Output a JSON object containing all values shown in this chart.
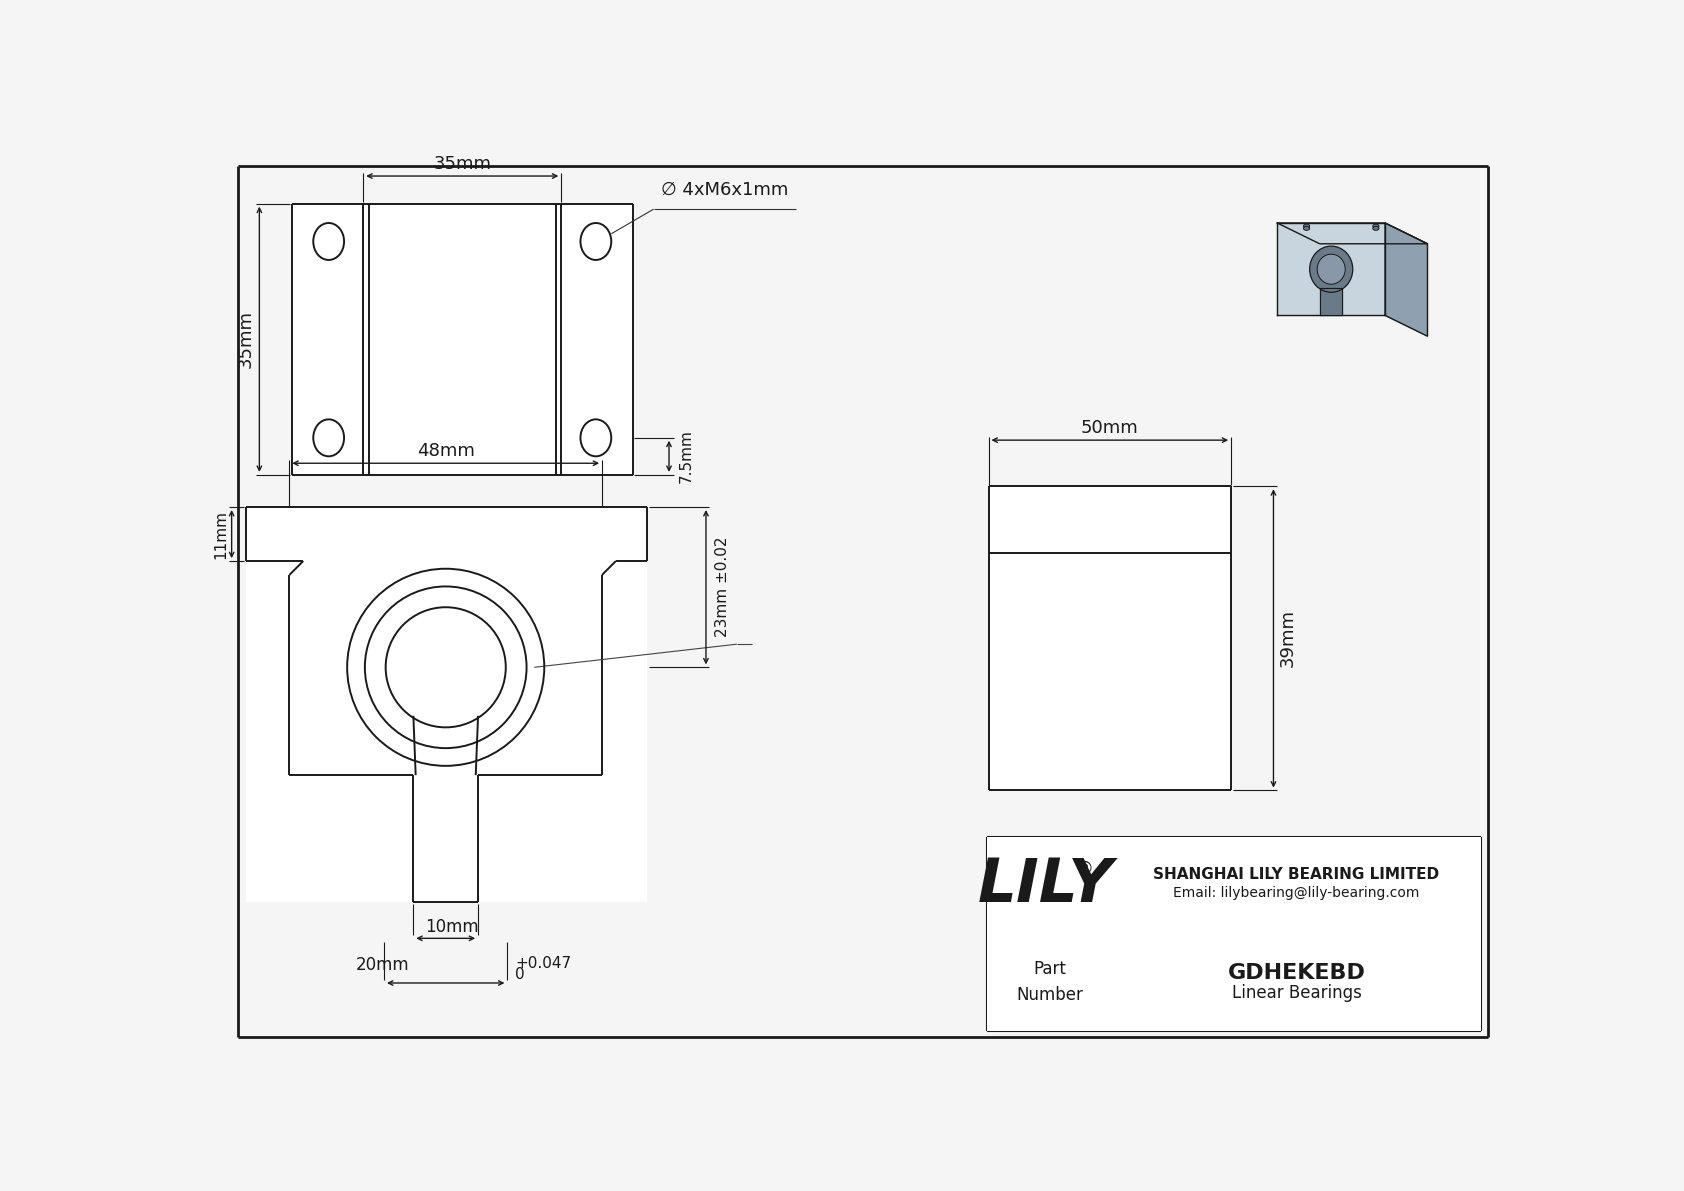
{
  "bg_color": "#f5f5f5",
  "line_color": "#1a1a1a",
  "dim_color": "#1a1a1a",
  "title": "GDHEKEBD",
  "subtitle": "Linear Bearings",
  "company": "SHANGHAI LILY BEARING LIMITED",
  "email": "Email: lilybearing@lily-bearing.com",
  "logo_reg": "®",
  "dims": {
    "top_width": "35mm",
    "top_height": "35mm",
    "bolt_label": "∅ 4xM6x1mm",
    "dim_7_5": "7.5",
    "bottom_width": "48mm",
    "side_11": "11mm",
    "side_23": "23mm ±0.02",
    "inner_10": "10mm",
    "inner_20": "20mm",
    "tol_plus": "+0.047",
    "tol_zero": "0",
    "right_50": "50mm",
    "right_39": "39mm"
  }
}
